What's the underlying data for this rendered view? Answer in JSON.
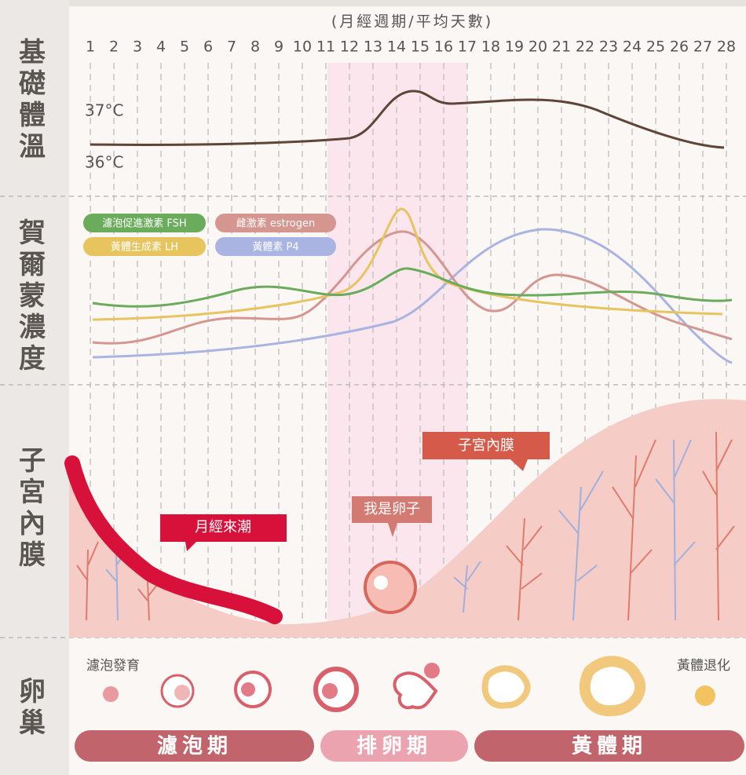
{
  "axis_title": "(月經週期/平均天數)",
  "days": [
    1,
    2,
    3,
    4,
    5,
    6,
    7,
    8,
    9,
    10,
    11,
    12,
    13,
    14,
    15,
    16,
    17,
    18,
    19,
    20,
    21,
    22,
    23,
    24,
    25,
    26,
    27,
    28
  ],
  "sections": [
    "基礎體溫",
    "賀爾蒙濃度",
    "子宮內膜",
    "卵巢"
  ],
  "temperature_labels": [
    "37°C",
    "36°C"
  ],
  "hormone_legend": [
    "濾泡促進激素 FSH",
    "雌激素 estrogen",
    "黃體生成素 LH",
    "黃體素 P4"
  ],
  "callouts": [
    "月經來潮",
    "我是卵子",
    "子宮內膜"
  ],
  "ovary_labels": [
    "濾泡發育",
    "黃體退化"
  ],
  "phases": [
    "濾泡期",
    "排卵期",
    "黃體期"
  ]
}
